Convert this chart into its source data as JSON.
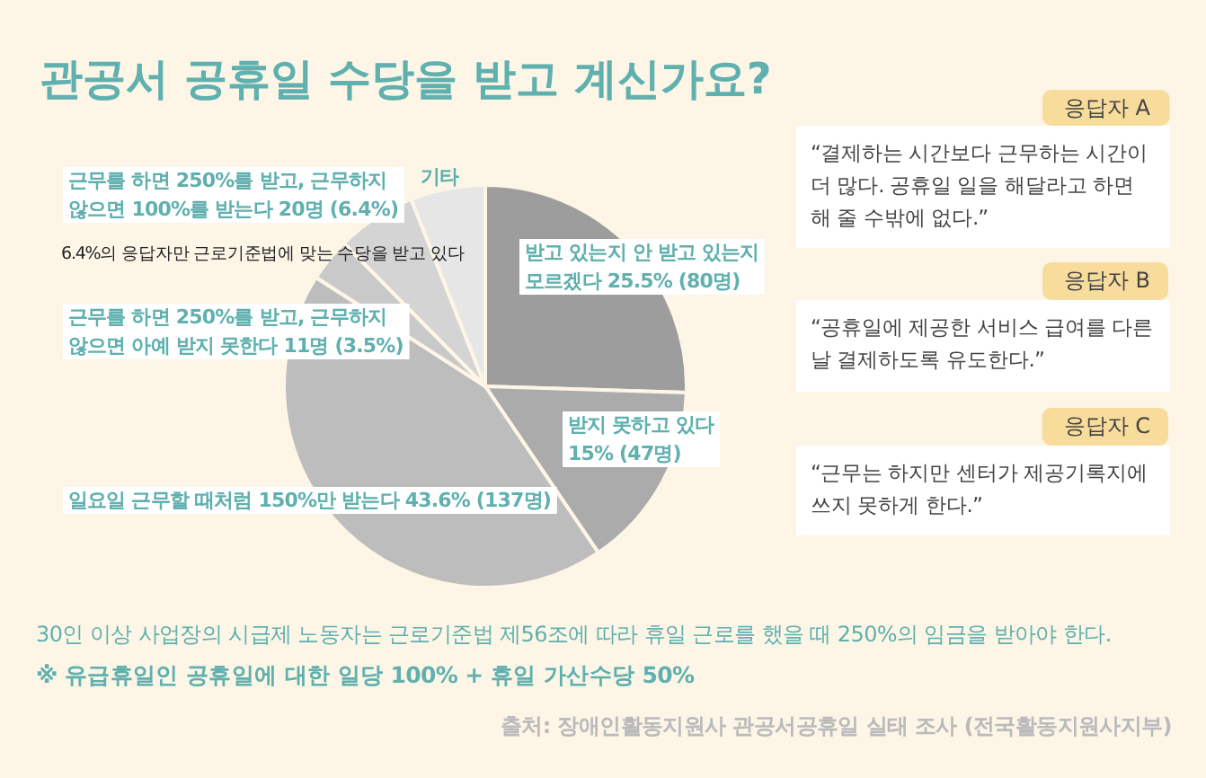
{
  "chart_data": [
    {
      "type": "pie",
      "title": "관공서 공휴일 수당을 받고 계신가요?",
      "categories": [
        "받고 있는지 안 받고 있는지 모르겠다",
        "받지 못하고 있다",
        "일요일 근무할 때처럼 150%만 받는다",
        "근무를 하면 250%를 받고, 근무하지 않으면 아예 받지 못한다",
        "근무를 하면 250%를 받고, 근무하지 않으면 100%를 받는다",
        "기타"
      ],
      "values": [
        25.5,
        15,
        43.6,
        3.5,
        6.4,
        6.0
      ],
      "colors": [
        "#9d9d9d",
        "#ababab",
        "#bdbdbd",
        "#c9c9c9",
        "#d4d4d4",
        "#e6e6e6"
      ],
      "value_labels": [
        "25.5% (80명)",
        "15% (47명)",
        "43.6% (137명)",
        "11명 (3.5%)",
        "20명 (6.4%)",
        null
      ],
      "annotations": [
        "6.4%의 응답자만 근로기준법에 맞는 수당을 받고 있다",
        "30인 이상 사업장의 시급제 노동자는 근로기준법 제56조에 따라 휴일 근로를 했을 때 250%의 임금을 받아야 한다.",
        "※ 유급휴일인 공휴일에 대한 일당 100% + 휴일 가산수당 50%",
        "출처: 장애인활동지원사 관공서공휴일 실태 조사 (전국활동지원사지부)"
      ]
    },
    {
      "type": "other",
      "annotations": [
        "응답자 A",
        "“결제하는 시간보다 근무하는 시간이 더 많다. 공휴일 일을 해달라고 하면 해 줄 수밖에 없다.”",
        "응답자 B",
        "“공휴일에 제공한 서비스 급여를 다른 날 결제하도록 유도한다.”",
        "응답자 C",
        "“근무는 하지만 센터가 제공기록지에 쓰지 못하게 한다.”"
      ]
    }
  ]
}
